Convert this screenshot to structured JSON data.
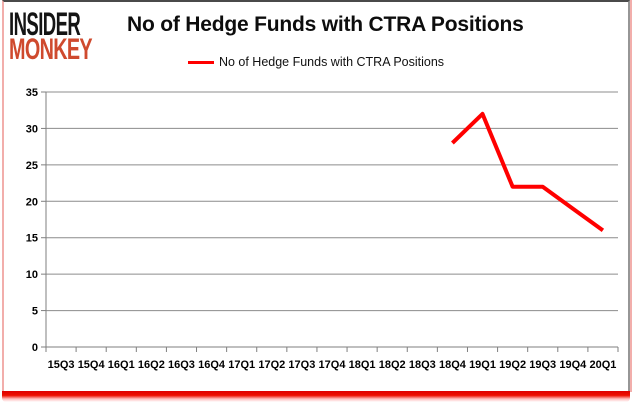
{
  "logo": {
    "line1": "INSIDER",
    "line2": "MONKEY"
  },
  "header": {
    "title": "No of Hedge Funds with CTRA Positions"
  },
  "legend": {
    "label": "No of Hedge Funds with CTRA Positions",
    "line_color": "#ff0000"
  },
  "colors": {
    "series_line": "#ff0000",
    "monkey_red": "#cf4a2e",
    "gridline": "#8c8c8c",
    "axis": "#7f7f7f",
    "bottom_band": "#e60000",
    "pink_border": "#f2aeab",
    "top_border": "#4a4a4a"
  },
  "chart_data": {
    "type": "line",
    "title": "No of Hedge Funds with CTRA Positions",
    "categories": [
      "15Q3",
      "15Q4",
      "16Q1",
      "16Q2",
      "16Q3",
      "16Q4",
      "17Q1",
      "17Q2",
      "17Q3",
      "17Q4",
      "18Q1",
      "18Q2",
      "18Q3",
      "18Q4",
      "19Q1",
      "19Q2",
      "19Q3",
      "19Q4",
      "20Q1"
    ],
    "series": [
      {
        "name": "No of Hedge Funds with CTRA Positions",
        "color": "#ff0000",
        "values": [
          null,
          null,
          null,
          null,
          null,
          null,
          null,
          null,
          null,
          null,
          null,
          null,
          null,
          28,
          32,
          22,
          22,
          19,
          16
        ]
      }
    ],
    "xlabel": "",
    "ylabel": "",
    "ylim": [
      0,
      35
    ],
    "ytick_step": 5,
    "grid": "horizontal",
    "legend_position": "top-center"
  }
}
